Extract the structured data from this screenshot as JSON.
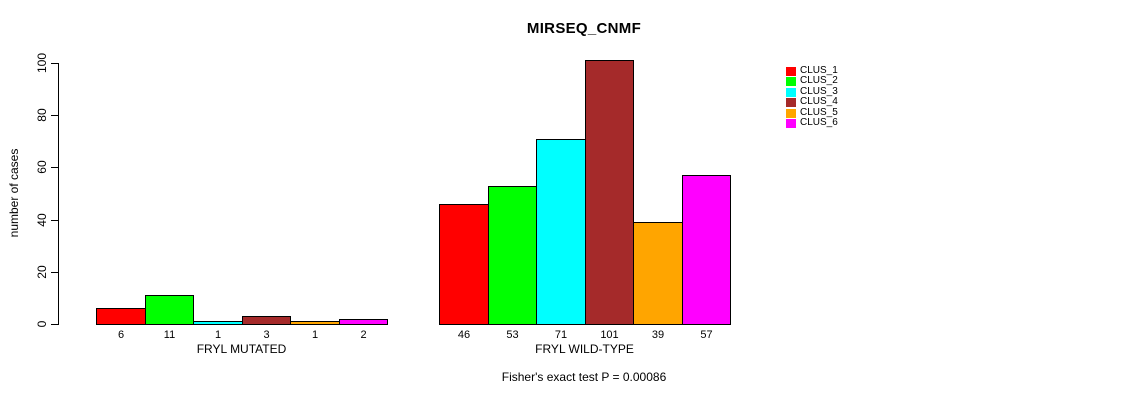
{
  "chart_data": {
    "type": "bar",
    "title": "MIRSEQ_CNMF",
    "ylabel": "number of cases",
    "xlabel": "",
    "ylim": [
      0,
      100
    ],
    "yticks": [
      0,
      20,
      40,
      60,
      80,
      100
    ],
    "grid": false,
    "legend_position": "right-inside",
    "bar_value_labels": true,
    "groups": [
      {
        "label": "FRYL MUTATED",
        "values": [
          6,
          11,
          1,
          3,
          1,
          2
        ]
      },
      {
        "label": "FRYL WILD-TYPE",
        "values": [
          46,
          53,
          71,
          101,
          39,
          57
        ]
      }
    ],
    "series_names": [
      "CLUS_1",
      "CLUS_2",
      "CLUS_3",
      "CLUS_4",
      "CLUS_5",
      "CLUS_6"
    ],
    "colors": [
      "#FF0000",
      "#00FF00",
      "#00FFFF",
      "#A52A2A",
      "#FFA500",
      "#FF00FF"
    ],
    "annotation": "Fisher's exact test P = 0.00086"
  }
}
